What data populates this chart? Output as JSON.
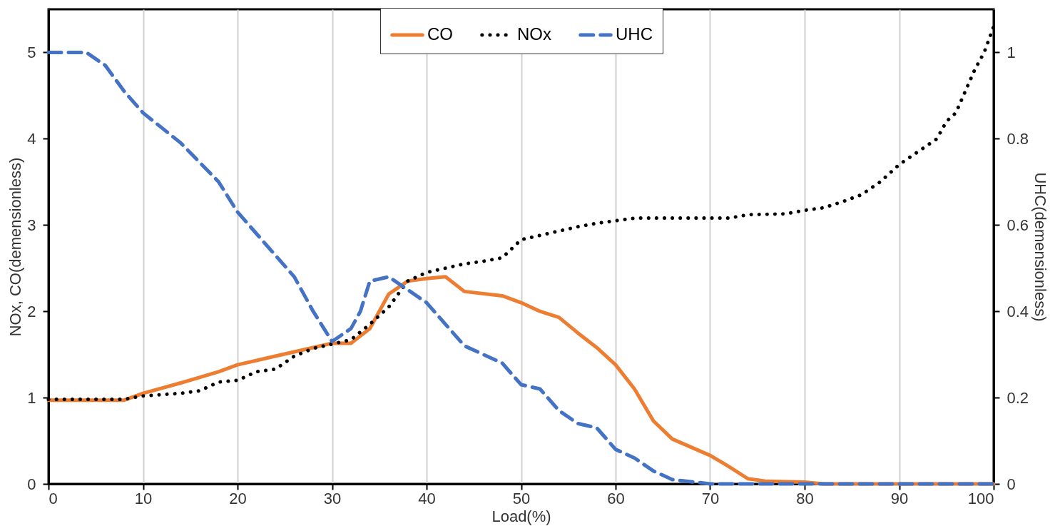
{
  "chart_data": {
    "type": "line",
    "xlabel": "Load(%)",
    "ylabel": "NOx, CO(demensionless)",
    "y2label": "UHC(demensionless)",
    "xlim": [
      0,
      100
    ],
    "xticks": [
      0,
      10,
      20,
      30,
      40,
      50,
      60,
      70,
      80,
      90,
      100
    ],
    "ylim": [
      0,
      5.5
    ],
    "yticks": [
      0,
      1,
      2,
      3,
      4,
      5
    ],
    "y2lim": [
      0,
      1.1
    ],
    "y2ticks": [
      0,
      0.2,
      0.4,
      0.6,
      0.8,
      1
    ],
    "grid": "x",
    "legend": "top",
    "series": [
      {
        "name": "CO",
        "color": "#ed7d31",
        "line_style": "solid",
        "x": [
          0,
          8,
          10,
          14,
          18,
          20,
          24,
          28,
          30,
          32,
          34,
          36,
          38,
          40,
          42,
          44,
          48,
          50,
          52,
          54,
          56,
          58,
          60,
          62,
          64,
          66,
          70,
          72,
          74,
          76,
          80,
          82,
          100
        ],
        "values": [
          0.97,
          0.97,
          1.05,
          1.17,
          1.3,
          1.38,
          1.48,
          1.58,
          1.63,
          1.63,
          1.8,
          2.2,
          2.35,
          2.38,
          2.4,
          2.23,
          2.18,
          2.1,
          2.0,
          1.93,
          1.75,
          1.58,
          1.38,
          1.1,
          0.73,
          0.52,
          0.33,
          0.2,
          0.06,
          0.03,
          0.02,
          0,
          0
        ]
      },
      {
        "name": "NOx",
        "color": "#000000",
        "line_style": "dotted",
        "x": [
          0,
          8,
          10,
          14,
          16,
          18,
          20,
          22,
          24,
          26,
          28,
          30,
          32,
          34,
          36,
          38,
          40,
          42,
          44,
          46,
          48,
          50,
          52,
          54,
          56,
          58,
          60,
          62,
          72,
          74,
          78,
          80,
          82,
          84,
          86,
          88,
          90,
          92,
          94,
          95,
          96,
          97,
          98,
          99,
          100
        ],
        "values": [
          0.98,
          0.98,
          1.02,
          1.05,
          1.08,
          1.18,
          1.2,
          1.3,
          1.33,
          1.48,
          1.57,
          1.62,
          1.67,
          1.85,
          2.05,
          2.35,
          2.45,
          2.5,
          2.55,
          2.58,
          2.62,
          2.83,
          2.88,
          2.93,
          2.98,
          3.02,
          3.05,
          3.08,
          3.08,
          3.12,
          3.13,
          3.17,
          3.2,
          3.27,
          3.35,
          3.5,
          3.7,
          3.85,
          4.0,
          4.2,
          4.3,
          4.55,
          4.8,
          5.0,
          5.3
        ]
      },
      {
        "name": "UHC",
        "color": "#4472c4",
        "line_style": "dashed",
        "axis": "y2",
        "x": [
          0,
          4,
          6,
          8,
          10,
          14,
          18,
          20,
          24,
          26,
          28,
          30,
          32,
          33,
          34,
          36,
          38,
          40,
          42,
          44,
          46,
          48,
          50,
          52,
          54,
          56,
          58,
          60,
          62,
          64,
          66,
          70,
          100
        ],
        "values": [
          1.0,
          1.0,
          0.97,
          0.91,
          0.86,
          0.79,
          0.7,
          0.63,
          0.53,
          0.48,
          0.4,
          0.33,
          0.36,
          0.4,
          0.47,
          0.48,
          0.45,
          0.42,
          0.37,
          0.32,
          0.3,
          0.28,
          0.23,
          0.22,
          0.17,
          0.14,
          0.13,
          0.08,
          0.06,
          0.03,
          0.01,
          0,
          0
        ]
      }
    ]
  }
}
